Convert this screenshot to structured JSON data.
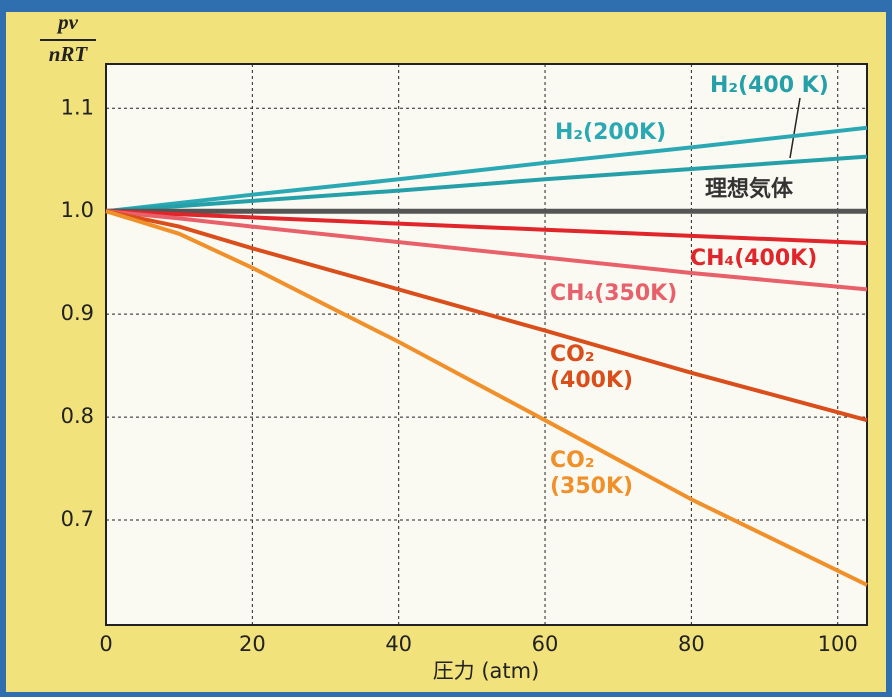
{
  "chart_data": {
    "type": "line",
    "ylabel_top": "pv",
    "ylabel_bottom": "nRT",
    "xlabel": "圧力 (atm)",
    "x": [
      0,
      10,
      20,
      40,
      60,
      80,
      104
    ],
    "xlim": [
      0,
      104
    ],
    "ylim": [
      0.598,
      1.143
    ],
    "xticks": [
      0,
      20,
      40,
      60,
      80,
      100
    ],
    "yticks": [
      0.7,
      0.8,
      0.9,
      {
        "value": 1,
        "label": "1.0"
      },
      1.1
    ],
    "grid": true,
    "series": [
      {
        "name": "H₂(200K)",
        "color": "#2aa9b4",
        "values": [
          1,
          1.008,
          1.016,
          1.031,
          1.047,
          1.062,
          1.081
        ]
      },
      {
        "name": "H₂(400 K)",
        "color": "#25a0a8",
        "values": [
          1,
          1.005,
          1.01,
          1.02,
          1.031,
          1.041,
          1.053
        ]
      },
      {
        "name": "理想気体",
        "color": "#555555",
        "values": [
          1,
          1,
          1,
          1,
          1,
          1,
          1
        ]
      },
      {
        "name": "CH₄(400K)",
        "color": "#e0262a",
        "values": [
          1,
          0.997,
          0.994,
          0.988,
          0.982,
          0.976,
          0.969
        ]
      },
      {
        "name": "CH₄(350K)",
        "color": "#e8606a",
        "values": [
          1,
          0.993,
          0.985,
          0.97,
          0.955,
          0.94,
          0.924
        ]
      },
      {
        "name": "CO₂ (400K)",
        "color": "#d94e1a",
        "values": [
          1,
          0.985,
          0.964,
          0.924,
          0.884,
          0.843,
          0.797
        ]
      },
      {
        "name": "CO₂ (350K)",
        "color": "#f0902a",
        "values": [
          1,
          0.978,
          0.945,
          0.873,
          0.797,
          0.72,
          0.637
        ]
      }
    ]
  }
}
